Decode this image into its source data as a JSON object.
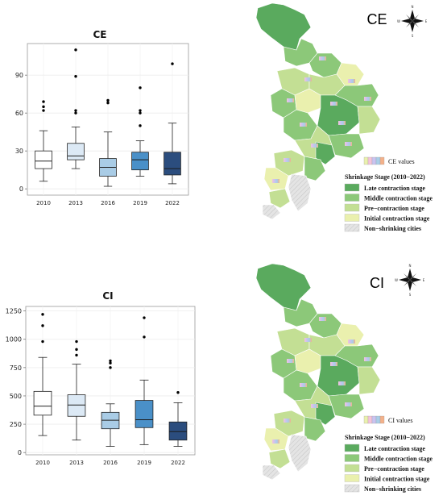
{
  "chart_data": [
    {
      "type": "boxplot",
      "title": "CE",
      "categories": [
        "2010",
        "2013",
        "2016",
        "2019",
        "2022"
      ],
      "yticks": [
        0,
        30,
        60,
        90
      ],
      "ylim": [
        -5,
        115
      ],
      "grid": true,
      "boxes": [
        {
          "min": 6,
          "q1": 16,
          "median": 22,
          "q3": 30,
          "max": 46,
          "outliers": [
            62,
            65,
            69
          ],
          "color": "#ffffff"
        },
        {
          "min": 16,
          "q1": 23,
          "median": 26,
          "q3": 36,
          "max": 49,
          "outliers": [
            60,
            62,
            89,
            110
          ],
          "color": "#dce9f5"
        },
        {
          "min": 2,
          "q1": 10,
          "median": 17,
          "q3": 24,
          "max": 45,
          "outliers": [
            68,
            70
          ],
          "color": "#a9cce6"
        },
        {
          "min": 10,
          "q1": 15,
          "median": 23,
          "q3": 29,
          "max": 38,
          "outliers": [
            50,
            60,
            62,
            80
          ],
          "color": "#4a90c8"
        },
        {
          "min": 4,
          "q1": 11,
          "median": 16,
          "q3": 29,
          "max": 52,
          "outliers": [
            99
          ],
          "color": "#2b4d7e"
        }
      ]
    },
    {
      "type": "boxplot",
      "title": "CI",
      "categories": [
        "2010",
        "2013",
        "2016",
        "2019",
        "2022"
      ],
      "yticks": [
        0,
        250,
        500,
        750,
        1000,
        1250
      ],
      "ylim": [
        -20,
        1290
      ],
      "grid": true,
      "boxes": [
        {
          "min": 150,
          "q1": 330,
          "median": 410,
          "q3": 540,
          "max": 840,
          "outliers": [
            980,
            1120,
            1220
          ],
          "color": "#ffffff"
        },
        {
          "min": 110,
          "q1": 320,
          "median": 420,
          "q3": 510,
          "max": 780,
          "outliers": [
            860,
            910,
            980
          ],
          "color": "#dce9f5"
        },
        {
          "min": 55,
          "q1": 210,
          "median": 285,
          "q3": 355,
          "max": 430,
          "outliers": [
            750,
            790,
            810
          ],
          "color": "#a9cce6"
        },
        {
          "min": 70,
          "q1": 220,
          "median": 290,
          "q3": 460,
          "max": 640,
          "outliers": [
            1020,
            1190
          ],
          "color": "#4a90c8"
        },
        {
          "min": 55,
          "q1": 110,
          "median": 185,
          "q3": 270,
          "max": 440,
          "outliers": [
            530
          ],
          "color": "#2b4d7e"
        }
      ]
    }
  ],
  "maps": [
    {
      "title": "CE",
      "values_label": "CE values",
      "legend_title": "Shrinkage Stage (2010−2022)",
      "legend_items": [
        {
          "label": "Late contraction stage",
          "color": "#5aaa5e"
        },
        {
          "label": "Middle contraction stage",
          "color": "#8cc879"
        },
        {
          "label": "Pre−contraction stage",
          "color": "#c3df94"
        },
        {
          "label": "Initial contraction stage",
          "color": "#eaf0ae"
        },
        {
          "label": "Non−shrinking cities",
          "color": "#e0e0e0"
        }
      ]
    },
    {
      "title": "CI",
      "values_label": "CI values",
      "legend_title": "Shrinkage Stage (2010−2022)",
      "legend_items": [
        {
          "label": "Late contraction stage",
          "color": "#5aaa5e"
        },
        {
          "label": "Middle contraction stage",
          "color": "#8cc879"
        },
        {
          "label": "Pre−contraction stage",
          "color": "#c3df94"
        },
        {
          "label": "Initial contraction stage",
          "color": "#eaf0ae"
        },
        {
          "label": "Non−shrinking cities",
          "color": "#e0e0e0"
        }
      ]
    }
  ],
  "compass_labels": {
    "n": "N",
    "s": "S",
    "e": "E",
    "w": "W"
  }
}
